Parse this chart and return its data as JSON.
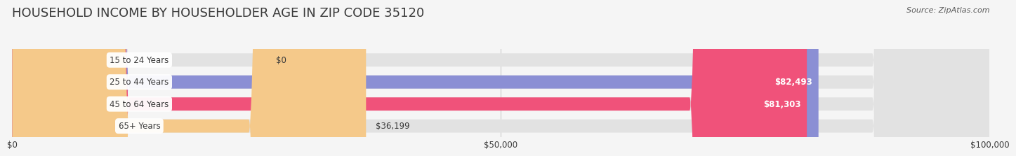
{
  "title": "HOUSEHOLD INCOME BY HOUSEHOLDER AGE IN ZIP CODE 35120",
  "source": "Source: ZipAtlas.com",
  "categories": [
    "15 to 24 Years",
    "25 to 44 Years",
    "45 to 64 Years",
    "65+ Years"
  ],
  "values": [
    0,
    82493,
    81303,
    36199
  ],
  "bar_colors": [
    "#5ecfca",
    "#8b8fd4",
    "#f0527a",
    "#f5c98a"
  ],
  "label_colors": [
    "#3a3a3a",
    "#ffffff",
    "#ffffff",
    "#3a3a3a"
  ],
  "label_texts": [
    "$0",
    "$82,493",
    "$81,303",
    "$36,199"
  ],
  "bg_color": "#f5f5f5",
  "bar_bg_color": "#e2e2e2",
  "xlim": [
    0,
    100000
  ],
  "xticks": [
    0,
    50000,
    100000
  ],
  "xtick_labels": [
    "$0",
    "$50,000",
    "$100,000"
  ],
  "title_color": "#3a3a3a",
  "source_color": "#5a5a5a",
  "title_fontsize": 13,
  "bar_height": 0.6
}
